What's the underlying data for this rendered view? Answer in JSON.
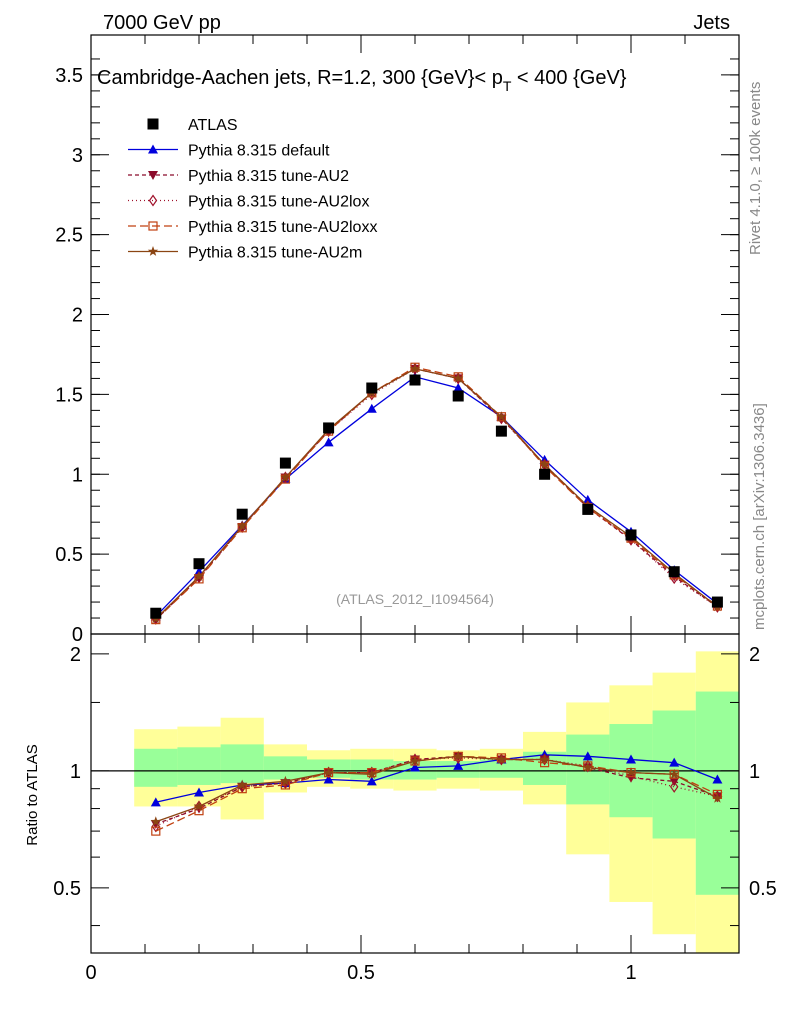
{
  "header": {
    "left": "7000 GeV pp",
    "right": "Jets"
  },
  "side": {
    "rivet": "Rivet 4.1.0, ≥ 100k events",
    "mcplots": "mcplots.cern.ch [arXiv:1306.3436]"
  },
  "colors": {
    "atlas": "#000000",
    "default": "#0000dd",
    "au2": "#8b0a2a",
    "au2lox": "#a0102a",
    "au2loxx": "#c04010",
    "au2m": "#8b4513",
    "band_inner": "#99ff99",
    "band_outer": "#ffff99"
  },
  "chart_data": [
    {
      "type": "scatter",
      "name": "main",
      "title_text": "Cambridge-Aachen jets, R=1.2,  300 {GeV}< p",
      "title_sub": "T",
      "title_end": " < 400 {GeV}",
      "watermark": "(ATLAS_2012_I1094564)",
      "x": [
        0.12,
        0.2,
        0.28,
        0.36,
        0.44,
        0.52,
        0.6,
        0.68,
        0.76,
        0.84,
        0.92,
        1.0,
        1.08,
        1.16
      ],
      "xlim": [
        0,
        1.2
      ],
      "ylim": [
        0,
        3.75
      ],
      "yticks": [
        0,
        0.5,
        1,
        1.5,
        2,
        2.5,
        3,
        3.5
      ],
      "ytick_labels": [
        "0",
        "0.5",
        "1",
        "1.5",
        "2",
        "2.5",
        "3",
        "3.5"
      ],
      "series": [
        {
          "name": "ATLAS",
          "key": "atlas",
          "values": [
            0.13,
            0.44,
            0.75,
            1.07,
            1.29,
            1.54,
            1.59,
            1.49,
            1.27,
            1.0,
            0.78,
            0.62,
            0.39,
            0.2
          ]
        },
        {
          "name": "Pythia 8.315 default",
          "key": "default",
          "values": [
            0.11,
            0.39,
            0.68,
            0.97,
            1.2,
            1.41,
            1.61,
            1.54,
            1.36,
            1.09,
            0.84,
            0.64,
            0.4,
            0.19
          ]
        },
        {
          "name": "Pythia 8.315 tune-AU2",
          "key": "au2",
          "values": [
            0.09,
            0.35,
            0.67,
            0.98,
            1.27,
            1.51,
            1.66,
            1.6,
            1.35,
            1.06,
            0.79,
            0.59,
            0.36,
            0.17
          ]
        },
        {
          "name": "Pythia 8.315 tune-AU2lox",
          "key": "au2lox",
          "values": [
            0.095,
            0.355,
            0.67,
            0.98,
            1.27,
            1.5,
            1.66,
            1.6,
            1.35,
            1.06,
            0.8,
            0.59,
            0.35,
            0.17
          ]
        },
        {
          "name": "Pythia 8.315 tune-AU2loxx",
          "key": "au2loxx",
          "values": [
            0.09,
            0.345,
            0.665,
            0.97,
            1.27,
            1.51,
            1.67,
            1.61,
            1.36,
            1.05,
            0.79,
            0.6,
            0.37,
            0.175
          ]
        },
        {
          "name": "Pythia 8.315 tune-AU2m",
          "key": "au2m",
          "values": [
            0.095,
            0.36,
            0.675,
            0.98,
            1.28,
            1.51,
            1.66,
            1.6,
            1.36,
            1.06,
            0.8,
            0.61,
            0.38,
            0.17
          ]
        }
      ]
    },
    {
      "type": "scatter",
      "name": "ratio",
      "ylabel": "Ratio to ATLAS",
      "xlim": [
        0,
        1.2
      ],
      "ylim": [
        0.34,
        2.25
      ],
      "xticks": [
        0,
        0.5,
        1
      ],
      "xtick_labels": [
        "0",
        "0.5",
        "1"
      ],
      "yticks": [
        0.5,
        1,
        2
      ],
      "ytick_labels": [
        "0.5",
        "1",
        "2"
      ],
      "bin_edges": [
        0.08,
        0.16,
        0.24,
        0.32,
        0.4,
        0.48,
        0.56,
        0.64,
        0.72,
        0.8,
        0.88,
        0.96,
        1.04,
        1.12,
        1.2
      ],
      "band_inner": [
        [
          0.91,
          1.14
        ],
        [
          0.92,
          1.15
        ],
        [
          0.93,
          1.17
        ],
        [
          0.95,
          1.09
        ],
        [
          0.96,
          1.07
        ],
        [
          0.95,
          1.07
        ],
        [
          0.95,
          1.06
        ],
        [
          0.96,
          1.06
        ],
        [
          0.96,
          1.07
        ],
        [
          0.92,
          1.12
        ],
        [
          0.82,
          1.24
        ],
        [
          0.76,
          1.32
        ],
        [
          0.67,
          1.43
        ],
        [
          0.48,
          1.6
        ]
      ],
      "band_outer": [
        [
          0.81,
          1.28
        ],
        [
          0.81,
          1.3
        ],
        [
          0.75,
          1.37
        ],
        [
          0.88,
          1.17
        ],
        [
          0.91,
          1.13
        ],
        [
          0.9,
          1.14
        ],
        [
          0.89,
          1.14
        ],
        [
          0.9,
          1.13
        ],
        [
          0.89,
          1.14
        ],
        [
          0.82,
          1.26
        ],
        [
          0.61,
          1.5
        ],
        [
          0.46,
          1.66
        ],
        [
          0.38,
          1.79
        ],
        [
          0.34,
          2.03
        ]
      ],
      "series": [
        {
          "name": "Pythia 8.315 default",
          "key": "default",
          "values": [
            0.83,
            0.88,
            0.92,
            0.93,
            0.95,
            0.94,
            1.02,
            1.03,
            1.07,
            1.1,
            1.09,
            1.07,
            1.05,
            0.95
          ]
        },
        {
          "name": "Pythia 8.315 tune-AU2",
          "key": "au2",
          "values": [
            0.73,
            0.8,
            0.91,
            0.93,
            0.99,
            0.99,
            1.07,
            1.09,
            1.07,
            1.07,
            1.02,
            0.96,
            0.94,
            0.86
          ]
        },
        {
          "name": "Pythia 8.315 tune-AU2lox",
          "key": "au2lox",
          "values": [
            0.72,
            0.81,
            0.91,
            0.93,
            0.99,
            0.99,
            1.07,
            1.08,
            1.07,
            1.07,
            1.03,
            0.97,
            0.91,
            0.86
          ]
        },
        {
          "name": "Pythia 8.315 tune-AU2loxx",
          "key": "au2loxx",
          "values": [
            0.7,
            0.79,
            0.9,
            0.92,
            0.99,
            0.99,
            1.06,
            1.09,
            1.08,
            1.05,
            1.03,
            0.99,
            0.98,
            0.87
          ]
        },
        {
          "name": "Pythia 8.315 tune-AU2m",
          "key": "au2m",
          "values": [
            0.74,
            0.81,
            0.92,
            0.94,
            0.99,
            0.98,
            1.06,
            1.09,
            1.07,
            1.07,
            1.02,
            0.99,
            0.98,
            0.85
          ]
        }
      ]
    }
  ]
}
